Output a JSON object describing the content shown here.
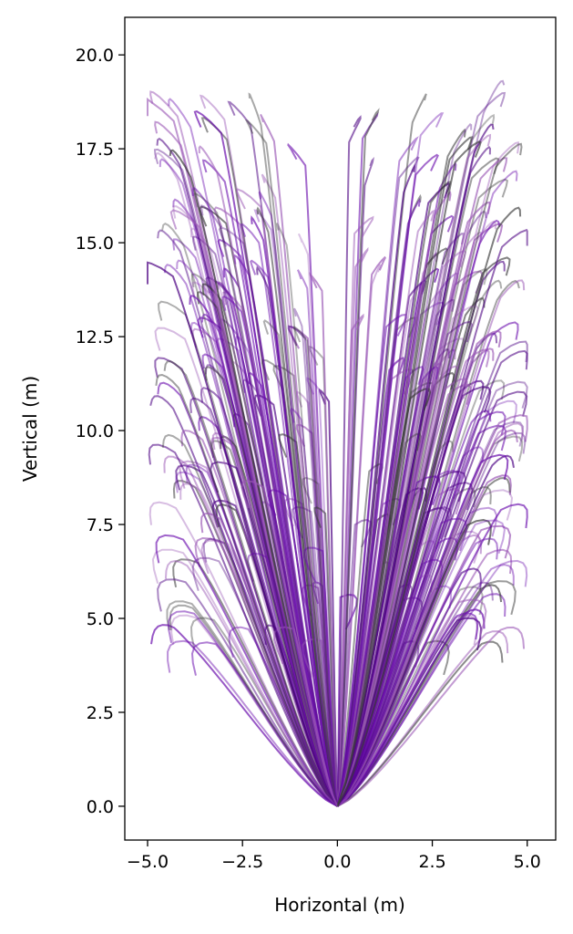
{
  "chart_data": {
    "type": "line",
    "title": "",
    "xlabel": "Horizontal (m)",
    "ylabel": "Vertical (m)",
    "xlim": [
      -5.6,
      5.75
    ],
    "ylim": [
      -0.9,
      21.0
    ],
    "xticks": [
      -5.0,
      -2.5,
      0.0,
      2.5,
      5.0
    ],
    "yticks": [
      0.0,
      2.5,
      5.0,
      7.5,
      10.0,
      12.5,
      15.0,
      17.5,
      20.0
    ],
    "xtick_labels": [
      "−5.0",
      "−2.5",
      "0.0",
      "2.5",
      "5.0"
    ],
    "ytick_labels": [
      "0.0",
      "2.5",
      "5.0",
      "7.5",
      "10.0",
      "12.5",
      "15.0",
      "17.5",
      "20.0"
    ],
    "grid": false,
    "legend": "none",
    "series_colors": [
      "#6a0dad",
      "#9b59b6",
      "#4b0082",
      "#3a3a3a"
    ],
    "trajectory_origin": [
      0.0,
      0.0
    ],
    "trajectory_count": 320,
    "x_range": [
      -5.0,
      5.0
    ],
    "y_range": [
      0.0,
      20.0
    ]
  }
}
